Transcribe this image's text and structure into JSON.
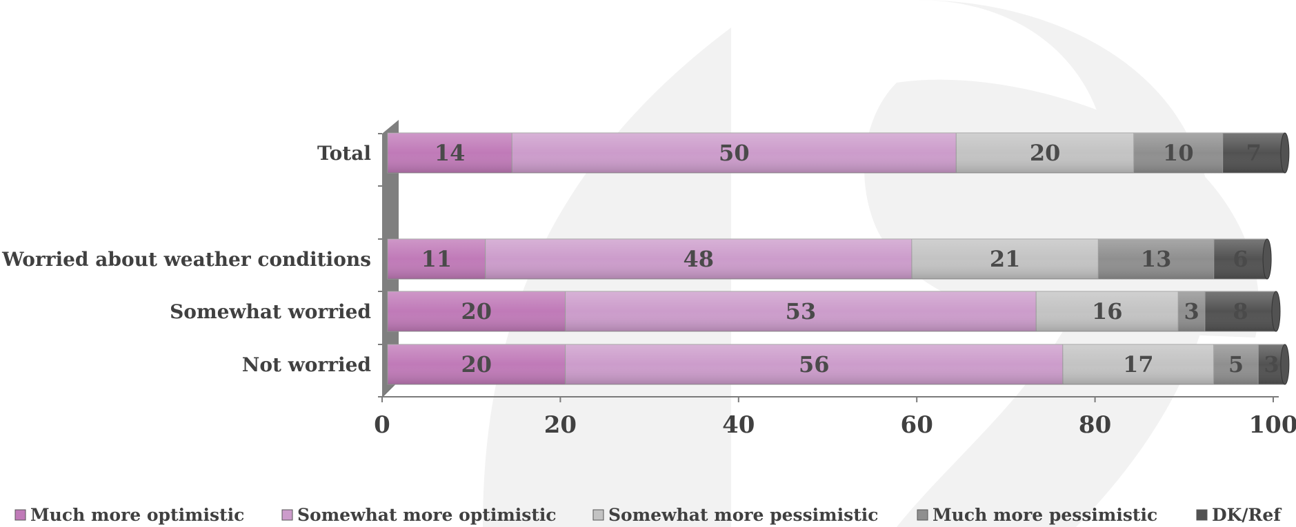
{
  "chart_data": {
    "type": "bar",
    "orientation": "horizontal",
    "stacked": true,
    "categories": [
      "Total",
      "Worried about weather conditions",
      "Somewhat worried",
      "Not worried"
    ],
    "series": [
      {
        "name": "Much more optimistic",
        "values": [
          14,
          11,
          20,
          20
        ],
        "color": "#c07ab8"
      },
      {
        "name": "Somewhat more optimistic",
        "values": [
          50,
          48,
          53,
          56
        ],
        "color": "#cc9ccb"
      },
      {
        "name": "Somewhat more pessimistic",
        "values": [
          20,
          21,
          16,
          17
        ],
        "color": "#c3c3c3"
      },
      {
        "name": "Much more pessimistic",
        "values": [
          10,
          13,
          3,
          5
        ],
        "color": "#8f8f8f"
      },
      {
        "name": "DK/Ref",
        "values": [
          7,
          6,
          8,
          3
        ],
        "color": "#525252"
      }
    ],
    "x_ticks": [
      "0",
      "20",
      "40",
      "60",
      "80",
      "100"
    ],
    "xlim": [
      0,
      100
    ],
    "grid": false,
    "legend_position": "bottom"
  },
  "colors": {
    "background_shape": "#f2f2f2",
    "axis": "#7a7a7a",
    "text": "#404040"
  }
}
